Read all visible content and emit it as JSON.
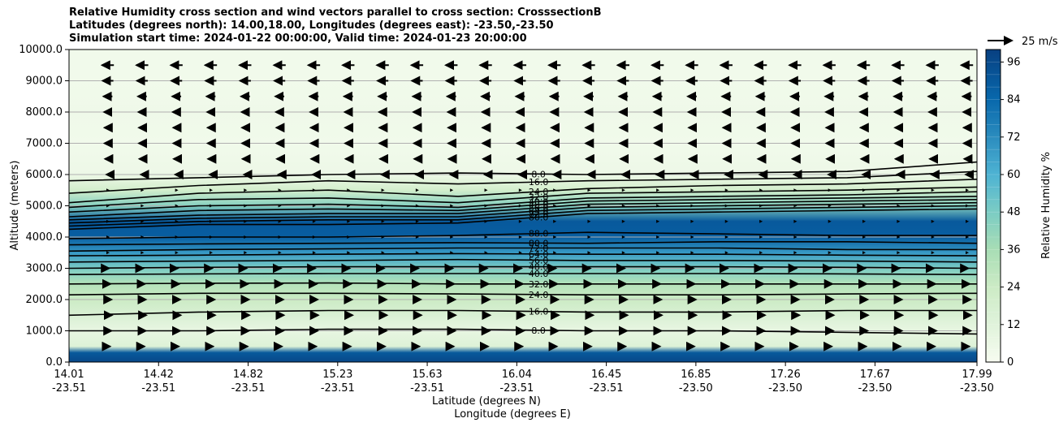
{
  "chart_data": {
    "type": "contour",
    "title_lines": [
      "Relative Humidity cross section and wind vectors parallel to cross section: CrosssectionB",
      "Latitudes (degrees north): 14.00,18.00, Longitudes (degrees east): -23.50,-23.50",
      "Simulation start time: 2024-01-22 00:00:00, Valid time: 2024-01-23 20:00:00"
    ],
    "ylabel": "Altitude (meters)",
    "xlabel": "Latitude (degrees N)",
    "xlabel2": "Longitude (degrees E)",
    "ylim": [
      0,
      10000
    ],
    "y_ticks": [
      "0.0",
      "1000.0",
      "2000.0",
      "3000.0",
      "4000.0",
      "5000.0",
      "6000.0",
      "7000.0",
      "8000.0",
      "9000.0",
      "10000.0"
    ],
    "y_tick_values": [
      0,
      1000,
      2000,
      3000,
      4000,
      5000,
      6000,
      7000,
      8000,
      9000,
      10000
    ],
    "grid": "horizontal",
    "x_ticks": [
      {
        "lat": "14.01",
        "lon": "-23.51"
      },
      {
        "lat": "14.42",
        "lon": "-23.51"
      },
      {
        "lat": "14.82",
        "lon": "-23.51"
      },
      {
        "lat": "15.23",
        "lon": "-23.51"
      },
      {
        "lat": "15.63",
        "lon": "-23.51"
      },
      {
        "lat": "16.04",
        "lon": "-23.51"
      },
      {
        "lat": "16.45",
        "lon": "-23.51"
      },
      {
        "lat": "16.85",
        "lon": "-23.50"
      },
      {
        "lat": "17.26",
        "lon": "-23.50"
      },
      {
        "lat": "17.67",
        "lon": "-23.50"
      },
      {
        "lat": "17.99",
        "lon": "-23.50"
      }
    ],
    "colorbar": {
      "label": "Relative Humidity %",
      "ticks": [
        "0",
        "12",
        "24",
        "36",
        "48",
        "60",
        "72",
        "84",
        "96"
      ],
      "range": [
        0,
        100
      ],
      "colormap": "GnBu"
    },
    "contour_labels": [
      "8.0",
      "16.0",
      "24.0",
      "32.0",
      "40.0",
      "48.0",
      "56.0",
      "64.0",
      "72.0",
      "80.0",
      "88.0",
      "96.0"
    ],
    "rh_profile": [
      {
        "alt": 0,
        "rh": 97
      },
      {
        "alt": 300,
        "rh": 90
      },
      {
        "alt": 500,
        "rh": 14
      },
      {
        "alt": 1000,
        "rh": 8
      },
      {
        "alt": 1500,
        "rh": 16
      },
      {
        "alt": 2000,
        "rh": 24
      },
      {
        "alt": 2500,
        "rh": 32
      },
      {
        "alt": 3000,
        "rh": 48
      },
      {
        "alt": 3500,
        "rh": 68
      },
      {
        "alt": 4000,
        "rh": 88
      },
      {
        "alt": 4500,
        "rh": 90
      },
      {
        "alt": 5000,
        "rh": 45
      },
      {
        "alt": 5500,
        "rh": 20
      },
      {
        "alt": 6000,
        "rh": 5
      },
      {
        "alt": 7000,
        "rh": 3
      },
      {
        "alt": 8000,
        "rh": 4
      },
      {
        "alt": 9000,
        "rh": 3
      },
      {
        "alt": 10000,
        "rh": 3
      }
    ],
    "contours": [
      {
        "level": "8.0",
        "alt": [
          5800,
          5900,
          6000,
          6050,
          6000,
          6050,
          6100,
          6400
        ]
      },
      {
        "level": "16.0",
        "alt": [
          5400,
          5650,
          5800,
          5700,
          5800,
          5850,
          5900,
          6100
        ]
      },
      {
        "level": "24.0",
        "alt": [
          5100,
          5400,
          5500,
          5300,
          5550,
          5650,
          5700,
          5850
        ]
      },
      {
        "level": "32.0",
        "alt": [
          4950,
          5200,
          5250,
          5100,
          5400,
          5450,
          5500,
          5600
        ]
      },
      {
        "level": "40.0",
        "alt": [
          4800,
          5000,
          5050,
          4950,
          5250,
          5300,
          5350,
          5450
        ]
      },
      {
        "level": "48.0",
        "alt": [
          4650,
          4850,
          4900,
          4850,
          5150,
          5200,
          5250,
          5300
        ]
      },
      {
        "level": "56.0",
        "alt": [
          4550,
          4700,
          4750,
          4750,
          5050,
          5100,
          5150,
          5200
        ]
      },
      {
        "level": "64.0",
        "alt": [
          4450,
          4600,
          4650,
          4650,
          4950,
          5000,
          5050,
          5100
        ]
      },
      {
        "level": "72.0",
        "alt": [
          4350,
          4500,
          4550,
          4550,
          4850,
          4900,
          4950,
          5000
        ]
      },
      {
        "level": "80.0",
        "alt": [
          4250,
          4400,
          4400,
          4450,
          4750,
          4800,
          4850,
          4900
        ]
      },
      {
        "level": "88.0",
        "alt": [
          3950,
          4000,
          4000,
          4050,
          4150,
          4100,
          4050,
          4050
        ]
      },
      {
        "level": "80.0",
        "alt": [
          3750,
          3780,
          3800,
          3820,
          3800,
          3850,
          3850,
          3800
        ]
      },
      {
        "level": "72.0",
        "alt": [
          3550,
          3600,
          3620,
          3650,
          3650,
          3650,
          3600,
          3600
        ]
      },
      {
        "level": "64.0",
        "alt": [
          3400,
          3420,
          3450,
          3470,
          3450,
          3450,
          3420,
          3400
        ]
      },
      {
        "level": "56.0",
        "alt": [
          3200,
          3230,
          3250,
          3280,
          3250,
          3250,
          3230,
          3200
        ]
      },
      {
        "level": "48.0",
        "alt": [
          3000,
          3030,
          3050,
          3050,
          3050,
          3050,
          3030,
          3000
        ]
      },
      {
        "level": "40.0",
        "alt": [
          2800,
          2820,
          2830,
          2830,
          2830,
          2830,
          2820,
          2800
        ]
      },
      {
        "level": "32.0",
        "alt": [
          2500,
          2520,
          2530,
          2500,
          2500,
          2500,
          2500,
          2500
        ]
      },
      {
        "level": "24.0",
        "alt": [
          2150,
          2200,
          2200,
          2180,
          2150,
          2150,
          2180,
          2200
        ]
      },
      {
        "level": "16.0",
        "alt": [
          1500,
          1600,
          1650,
          1650,
          1600,
          1600,
          1650,
          1650
        ]
      },
      {
        "level": "8.0",
        "alt": [
          1000,
          1000,
          1050,
          1050,
          1000,
          1000,
          950,
          900
        ]
      }
    ],
    "wind": {
      "key_label": "25 m/s",
      "rows": [
        {
          "alt": 9500,
          "u": -12
        },
        {
          "alt": 9000,
          "u": -11
        },
        {
          "alt": 8500,
          "u": -9
        },
        {
          "alt": 8000,
          "u": -8
        },
        {
          "alt": 7500,
          "u": -7
        },
        {
          "alt": 7000,
          "u": -7
        },
        {
          "alt": 6500,
          "u": -6
        },
        {
          "alt": 6000,
          "u": -3
        },
        {
          "alt": 5500,
          "u": -1
        },
        {
          "alt": 5000,
          "u": 0
        },
        {
          "alt": 4500,
          "u": 0
        },
        {
          "alt": 4000,
          "u": 0
        },
        {
          "alt": 3500,
          "u": 0
        },
        {
          "alt": 3000,
          "u": 2
        },
        {
          "alt": 2500,
          "u": 5
        },
        {
          "alt": 2000,
          "u": 7
        },
        {
          "alt": 1500,
          "u": 8
        },
        {
          "alt": 1000,
          "u": 7
        },
        {
          "alt": 500,
          "u": 4
        }
      ]
    }
  }
}
